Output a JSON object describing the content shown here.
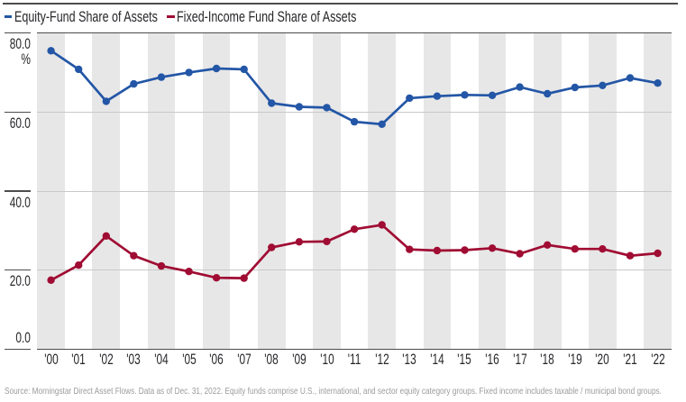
{
  "legend": {
    "items": [
      {
        "label": "Equity-Fund Share of Assets",
        "color": "#2356a6"
      },
      {
        "label": "Fixed-Income Fund Share of Assets",
        "color": "#a00c33"
      }
    ]
  },
  "y_axis": {
    "unit": "%",
    "tick_labels": [
      "80.0",
      "60.0",
      "40.0",
      "20.0",
      "0.0"
    ]
  },
  "x_axis": {
    "labels": [
      "'00",
      "'01",
      "'02",
      "'03",
      "'04",
      "'05",
      "'06",
      "'07",
      "'08",
      "'09",
      "'10",
      "'11",
      "'12",
      "'13",
      "'14",
      "'15",
      "'16",
      "'17",
      "'18",
      "'19",
      "'20",
      "'21",
      "'22"
    ]
  },
  "source": "Source: Morningstar Direct Asset Flows. Data as of Dec. 31, 2022. Equity funds comprise U.S., international, and sector equity category groups. Fixed income includes taxable / municipal bond groups.",
  "chart_data": {
    "type": "line",
    "categories": [
      "'00",
      "'01",
      "'02",
      "'03",
      "'04",
      "'05",
      "'06",
      "'07",
      "'08",
      "'09",
      "'10",
      "'11",
      "'12",
      "'13",
      "'14",
      "'15",
      "'16",
      "'17",
      "'18",
      "'19",
      "'20",
      "'21",
      "'22"
    ],
    "series": [
      {
        "name": "Equity-Fund Share of Assets",
        "color": "#2356a6",
        "values": [
          75.6,
          70.9,
          62.8,
          67.2,
          68.9,
          70.1,
          71.1,
          70.9,
          62.3,
          61.4,
          61.2,
          57.6,
          57.0,
          63.6,
          64.1,
          64.4,
          64.3,
          66.4,
          64.7,
          66.3,
          66.8,
          68.7,
          67.4
        ]
      },
      {
        "name": "Fixed-Income Fund Share of Assets",
        "color": "#a00c33",
        "values": [
          17.5,
          21.3,
          28.7,
          23.7,
          21.1,
          19.7,
          18.1,
          18.0,
          25.8,
          27.2,
          27.3,
          30.4,
          31.5,
          25.3,
          25.0,
          25.1,
          25.6,
          24.2,
          26.4,
          25.4,
          25.4,
          23.7,
          24.3
        ]
      }
    ],
    "title": "",
    "xlabel": "",
    "ylabel": "%",
    "ylim": [
      0,
      80
    ],
    "yticks": [
      80,
      60,
      40,
      20,
      0
    ],
    "grid": "horizontal",
    "legend_position": "top-left",
    "background_bands": "alternating vertical year bands",
    "band_colors": [
      "#e7e7e7",
      "#ffffff"
    ],
    "marker": "circle"
  }
}
